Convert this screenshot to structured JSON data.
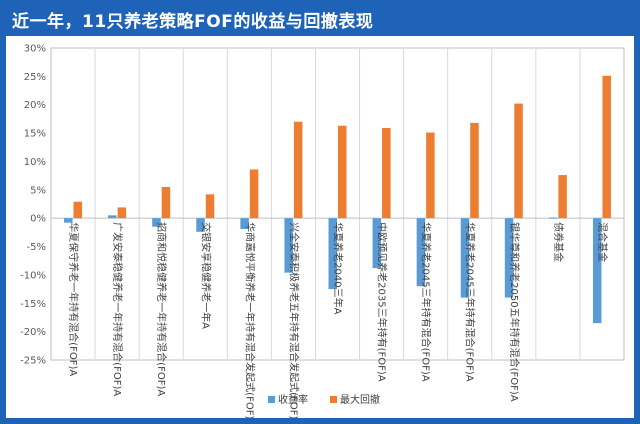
{
  "page": {
    "title": "近一年，11只养老策略FOF的收益与回撤表现"
  },
  "colors": {
    "background": "#1f63b9",
    "series_return": "#5b9bd5",
    "series_drawdown": "#ed7d31",
    "grid": "#d9d9d9"
  },
  "chart_data": {
    "type": "bar",
    "title": "",
    "xlabel": "",
    "ylabel": "",
    "ylim": [
      -25,
      30
    ],
    "yticks": [
      30,
      25,
      20,
      15,
      10,
      5,
      0,
      -5,
      -10,
      -15,
      -20,
      -25
    ],
    "ytick_labels": [
      "30%",
      "25%",
      "20%",
      "15%",
      "10%",
      "5%",
      "0%",
      "-5%",
      "-10%",
      "-15%",
      "-20%",
      "-25%"
    ],
    "grid": "vertical-category-separators",
    "legend_position": "bottom",
    "categories": [
      "华夏保守养老一年持有混合(FOF)A",
      "广发安泰稳健养老一年持有混合(FOF)A",
      "招商和悦稳健养老一年持有混合(FOF)A",
      "交银安享稳健养老一年A",
      "华商嘉悦平衡养老一年持有混合发起式(FOF)A",
      "兴全安泰积极养老五年持有混合发起式(FOF)A",
      "华夏养老2040三年A",
      "中欧预见养老2035三年持有(FOF)A",
      "华夏养老2045三年持有混合(FOF)A",
      "华夏养老2045三年持有混合(FOF)A",
      "银华尊和养老2050五年持有混合(FOF)A",
      "债券基金",
      "混合基金"
    ],
    "series": [
      {
        "name": "收益率",
        "values": [
          -0.8,
          0.5,
          -1.5,
          -2.4,
          -1.9,
          -9.6,
          -12.5,
          -8.8,
          -12.0,
          -14.0,
          -14.0,
          0.1,
          -18.5
        ]
      },
      {
        "name": "最大回撤",
        "values": [
          2.9,
          1.9,
          5.5,
          4.2,
          8.6,
          17.0,
          16.3,
          15.9,
          15.1,
          16.8,
          20.2,
          7.6,
          25.1
        ]
      }
    ]
  }
}
